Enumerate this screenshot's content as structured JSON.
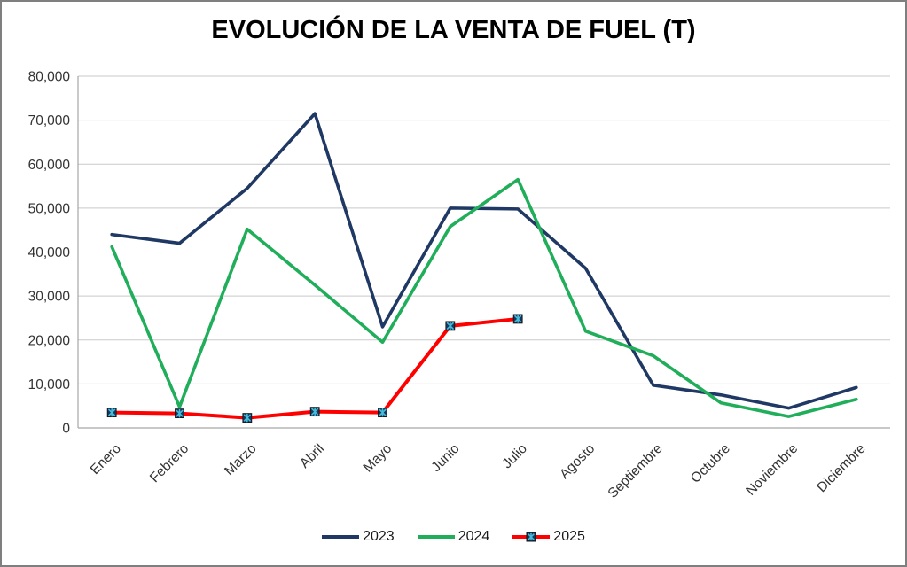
{
  "window": {
    "background": "#FFFFFF",
    "border_color": "#7F7F7F"
  },
  "chart_data": {
    "type": "line",
    "title": "EVOLUCIÓN DE LA VENTA DE FUEL (T)",
    "categories": [
      "Enero",
      "Febrero",
      "Marzo",
      "Abril",
      "Mayo",
      "Junio",
      "Julio",
      "Agosto",
      "Septiembre",
      "Octubre",
      "Noviembre",
      "Diciembre"
    ],
    "series": [
      {
        "name": "2023",
        "color": "#1F3864",
        "line_width": 3.6,
        "marker": "none",
        "values": [
          44000,
          42000,
          54500,
          71500,
          23000,
          50000,
          49800,
          36300,
          9700,
          7500,
          4500,
          9200
        ]
      },
      {
        "name": "2024",
        "color": "#21AE5B",
        "line_width": 3.6,
        "marker": "none",
        "values": [
          41200,
          4800,
          45200,
          32500,
          19500,
          45800,
          56500,
          22000,
          16400,
          5700,
          2600,
          6500
        ]
      },
      {
        "name": "2025",
        "color": "#FF0000",
        "line_width": 4,
        "marker": "x-square",
        "marker_fill": "#17375E",
        "marker_stroke": "#111111",
        "marker_x_color": "#45BCD9",
        "values": [
          3500,
          3300,
          2300,
          3700,
          3500,
          23200,
          24800,
          null,
          null,
          null,
          null,
          null
        ]
      }
    ],
    "ylim": [
      0,
      80000
    ],
    "ytick_step": 10000,
    "ytick_labels": [
      "0",
      "10,000",
      "20,000",
      "30,000",
      "40,000",
      "50,000",
      "60,000",
      "70,000",
      "80,000"
    ],
    "xlabel": "",
    "ylabel": "",
    "grid": "horizontal",
    "grid_color": "#C9C9C9",
    "axis_color": "#A6A6A6",
    "label_color": "#333333",
    "legend_position": "bottom",
    "x_label_rotation": -45
  }
}
